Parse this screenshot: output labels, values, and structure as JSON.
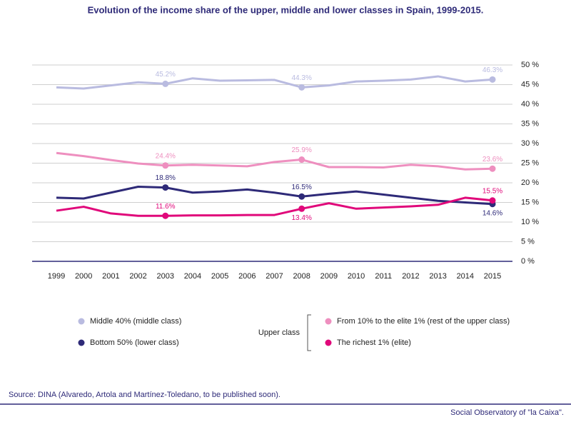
{
  "chart_data": {
    "type": "line",
    "title": "Evolution of the income share of the upper, middle and lower classes in Spain, 1999-2015.",
    "categories": [
      "1999",
      "2000",
      "2001",
      "2002",
      "2003",
      "2004",
      "2005",
      "2006",
      "2007",
      "2008",
      "2009",
      "2010",
      "2011",
      "2012",
      "2013",
      "2014",
      "2015"
    ],
    "ylim": [
      0,
      50
    ],
    "yticks": [
      {
        "value": 0,
        "label": "0 %"
      },
      {
        "value": 5,
        "label": "5 %"
      },
      {
        "value": 10,
        "label": "10 %"
      },
      {
        "value": 15,
        "label": "15 %"
      },
      {
        "value": 20,
        "label": "20 %"
      },
      {
        "value": 25,
        "label": "25 %"
      },
      {
        "value": 30,
        "label": "30 %"
      },
      {
        "value": 35,
        "label": "35 %"
      },
      {
        "value": 40,
        "label": "40 %"
      },
      {
        "value": 45,
        "label": "45 %"
      },
      {
        "value": 50,
        "label": "50 %"
      }
    ],
    "grid": true,
    "series": [
      {
        "name": "Middle 40% (middle class)",
        "color": "#b9bbe0",
        "values": [
          44.3,
          44.0,
          44.8,
          45.6,
          45.2,
          46.6,
          46.0,
          46.1,
          46.2,
          44.3,
          44.8,
          45.8,
          46.0,
          46.3,
          47.1,
          45.8,
          46.3
        ],
        "value_labels": [
          null,
          null,
          null,
          null,
          "45.2%",
          null,
          null,
          null,
          null,
          "44.3%",
          null,
          null,
          null,
          null,
          null,
          null,
          "46.3%"
        ]
      },
      {
        "name": "From 10% to the elite 1% (rest of the upper class)",
        "color": "#ee8fbf",
        "values": [
          27.6,
          26.8,
          25.8,
          24.9,
          24.4,
          24.6,
          24.4,
          24.2,
          25.3,
          25.9,
          24.0,
          24.0,
          23.9,
          24.6,
          24.2,
          23.4,
          23.6
        ],
        "value_labels": [
          null,
          null,
          null,
          null,
          "24.4%",
          null,
          null,
          null,
          null,
          "25.9%",
          null,
          null,
          null,
          null,
          null,
          null,
          "23.6%"
        ]
      },
      {
        "name": "Bottom 50% (lower class)",
        "color": "#2e2a78",
        "values": [
          16.2,
          16.0,
          17.5,
          19.0,
          18.8,
          17.5,
          17.8,
          18.3,
          17.5,
          16.5,
          17.2,
          17.8,
          17.0,
          16.2,
          15.4,
          15.0,
          14.6
        ],
        "value_labels": [
          null,
          null,
          null,
          null,
          "18.8%",
          null,
          null,
          null,
          null,
          "16.5%",
          null,
          null,
          null,
          null,
          null,
          null,
          "14.6%"
        ]
      },
      {
        "name": "The richest 1% (elite)",
        "color": "#e0087a",
        "values": [
          12.9,
          13.9,
          12.2,
          11.6,
          11.6,
          11.7,
          11.7,
          11.8,
          11.8,
          13.4,
          14.8,
          13.4,
          13.7,
          14.0,
          14.4,
          16.2,
          15.5
        ],
        "value_labels": [
          null,
          null,
          null,
          null,
          "11.6%",
          null,
          null,
          null,
          null,
          "13.4%",
          null,
          null,
          null,
          null,
          null,
          null,
          "15.5%"
        ]
      }
    ],
    "legend_group_label": "Upper class",
    "source": "Source: DINA (Alvaredo, Artola and Martínez-Toledano, to be published soon).",
    "footer": "Social Observatory of \"la Caixa\"."
  }
}
